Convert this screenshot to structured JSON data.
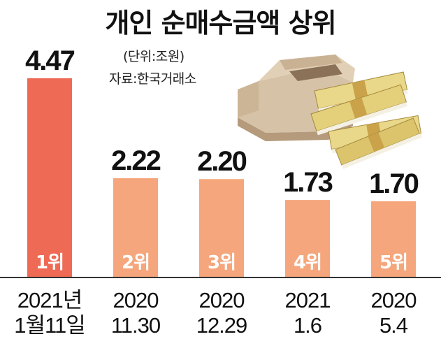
{
  "title": "개인 순매수금액 상위",
  "unit_note": "(단위:조원)",
  "source_note": "자료:한국거래소",
  "colors": {
    "top_bar": "#EF6A55",
    "other_bars": "#F5A67C",
    "baseline": "#333333"
  },
  "illustration": "money-box-illustration",
  "chart_data": {
    "type": "bar",
    "title": "개인 순매수금액 상위",
    "ylabel": "",
    "xlabel": "",
    "ylim": [
      0,
      4.47
    ],
    "grid": false,
    "categories": [
      {
        "line1": "2021년",
        "line2": "1월11일"
      },
      {
        "line1": "2020",
        "line2": "11.30"
      },
      {
        "line1": "2020",
        "line2": "12.29"
      },
      {
        "line1": "2021",
        "line2": "1.6"
      },
      {
        "line1": "2020",
        "line2": "5.4"
      }
    ],
    "values": [
      4.47,
      2.22,
      2.2,
      1.73,
      1.7
    ],
    "value_labels": [
      "4.47",
      "2.22",
      "2.20",
      "1.73",
      "1.70"
    ],
    "ranks": [
      "1위",
      "2위",
      "3위",
      "4위",
      "5위"
    ]
  }
}
